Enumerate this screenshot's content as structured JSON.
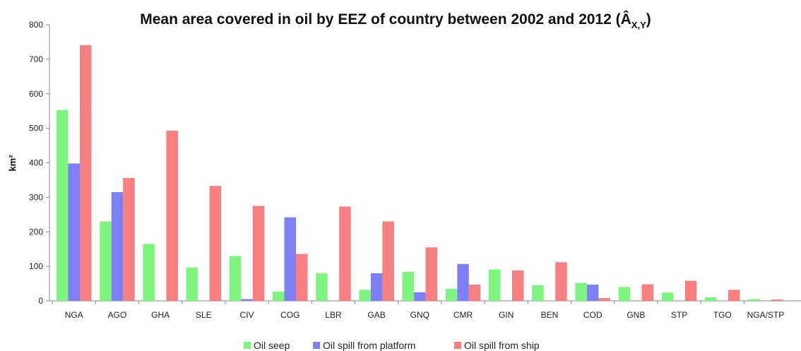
{
  "chart_data": {
    "type": "bar",
    "title": "Mean area covered in oil by EEZ of country between 2002 and 2012 (Â",
    "title_subscript": "X,Y",
    "title_close": ")",
    "xlabel": "",
    "ylabel": "km²",
    "ylim": [
      0,
      800
    ],
    "yticks": [
      0,
      100,
      200,
      300,
      400,
      500,
      600,
      700,
      800
    ],
    "grid": false,
    "legend_position": "bottom",
    "categories": [
      "NGA",
      "AGO",
      "GHA",
      "SLE",
      "CIV",
      "COG",
      "LBR",
      "GAB",
      "GNQ",
      "CMR",
      "GIN",
      "BEN",
      "COD",
      "GNB",
      "STP",
      "TGO",
      "NGA/STP"
    ],
    "series": [
      {
        "name": "Oil seep",
        "color": "#7ef57e",
        "values": [
          553,
          230,
          165,
          97,
          130,
          27,
          80,
          32,
          84,
          35,
          91,
          45,
          52,
          40,
          24,
          10,
          5
        ]
      },
      {
        "name": "Oil spill from platform",
        "color": "#7f7ff7",
        "values": [
          398,
          315,
          0,
          0,
          5,
          242,
          0,
          80,
          25,
          107,
          0,
          0,
          47,
          0,
          0,
          0,
          0
        ]
      },
      {
        "name": "Oil spill from ship",
        "color": "#f77f7f",
        "values": [
          741,
          356,
          493,
          333,
          275,
          136,
          273,
          230,
          155,
          47,
          88,
          112,
          8,
          48,
          58,
          32,
          4
        ]
      }
    ]
  }
}
